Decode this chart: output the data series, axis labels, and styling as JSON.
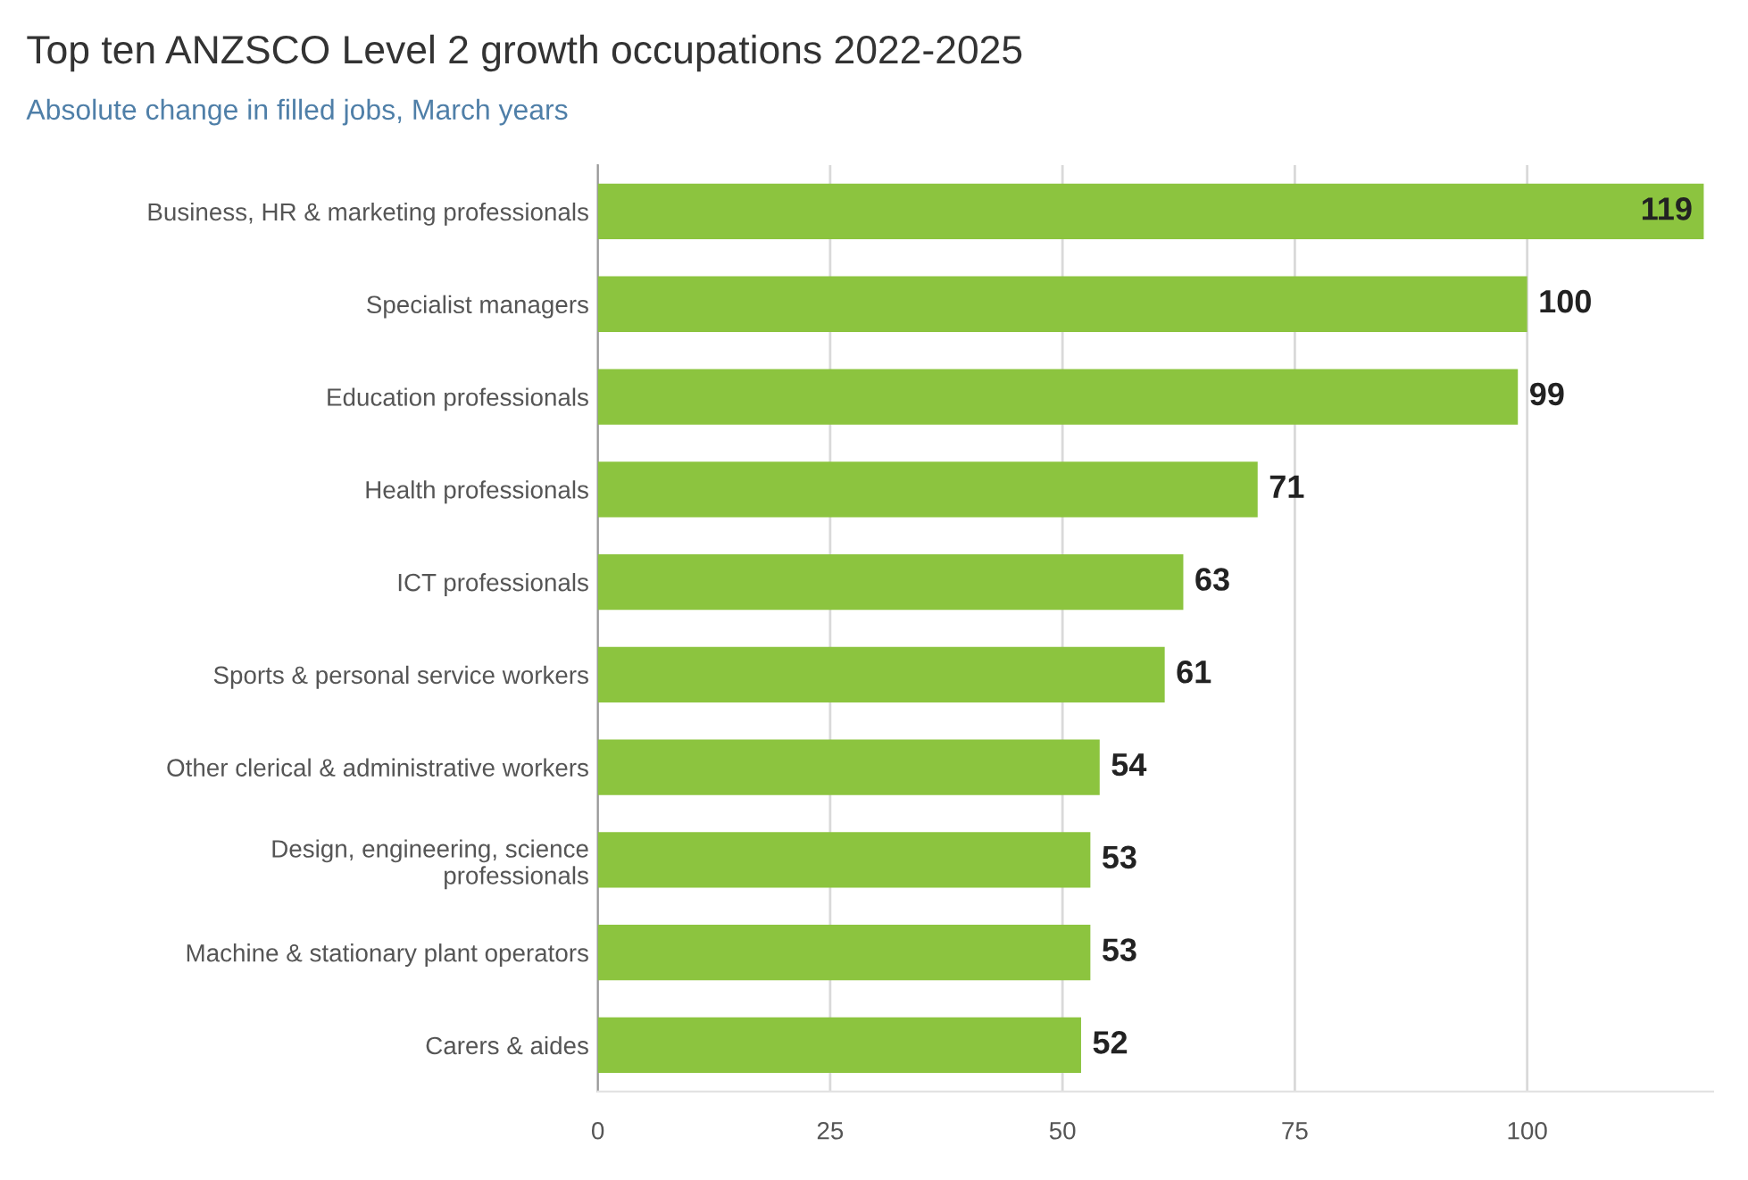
{
  "chart_data": {
    "type": "bar",
    "orientation": "horizontal",
    "title": "Top ten ANZSCO Level 2 growth occupations 2022-2025",
    "subtitle": "Absolute change in filled jobs, March years",
    "categories": [
      "Business, HR & marketing professionals",
      "Specialist managers",
      "Education professionals",
      "Health professionals",
      "ICT professionals",
      "Sports & personal service workers",
      "Other clerical & administrative workers",
      "Design, engineering, science\nprofessionals",
      "Machine & stationary plant operators",
      "Carers & aides"
    ],
    "values": [
      119,
      100,
      99,
      71,
      63,
      61,
      54,
      53,
      53,
      52
    ],
    "color": "#8cc43f",
    "xlim": [
      0,
      120
    ],
    "xticks": [
      0,
      25,
      50,
      75,
      100
    ],
    "grid": "x",
    "data_labels": true
  }
}
